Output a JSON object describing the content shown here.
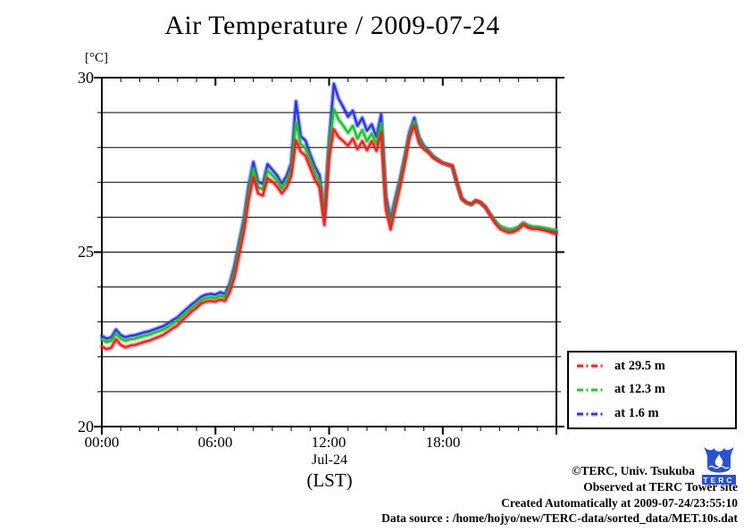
{
  "title": "Air Temperature / 2009-07-24",
  "y_axis": {
    "unit_label": "[°C]",
    "tick_labels": [
      "30",
      "25",
      "20"
    ]
  },
  "x_axis": {
    "tick_labels": [
      "00:00",
      "06:00",
      "12:00",
      "18:00"
    ],
    "date_label": "Jul-24",
    "tz_label": "(LST)"
  },
  "footer": {
    "credit": "©TERC, Univ. Tsukuba",
    "observed": "Observed at TERC Tower site",
    "created": "Created Automatically at 2009-07-24/23:55:10",
    "datasource": "Data source : /home/hojyo/new/TERC-data/sorted_data/MET.10s.dat"
  },
  "logo": {
    "text": "TERC",
    "color": "#2a52cc"
  },
  "chart_data": {
    "type": "line",
    "title": "Air Temperature / 2009-07-24",
    "xlabel": "Jul-24 (LST)",
    "ylabel": "[°C]",
    "xlim": [
      0,
      24
    ],
    "ylim": [
      20,
      30
    ],
    "x_major_tick_hours": 6,
    "x_minor_tick_hours": 1,
    "y_grid_step": 1,
    "grid": "horizontal",
    "legend_position": "outside-lower-right",
    "x_hours": {
      "start": 0,
      "step": 0.25,
      "count": 97
    },
    "series": [
      {
        "name": "at 29.5 m",
        "color": "#ee2222",
        "values": [
          22.3,
          22.22,
          22.26,
          22.5,
          22.34,
          22.27,
          22.32,
          22.34,
          22.38,
          22.43,
          22.46,
          22.52,
          22.57,
          22.63,
          22.72,
          22.82,
          22.9,
          23.04,
          23.17,
          23.3,
          23.4,
          23.53,
          23.58,
          23.6,
          23.58,
          23.64,
          23.6,
          23.85,
          24.28,
          24.92,
          25.58,
          26.5,
          27.15,
          26.68,
          26.62,
          27.12,
          27.02,
          26.88,
          26.68,
          26.85,
          27.18,
          28.2,
          27.88,
          27.76,
          27.42,
          27.08,
          26.85,
          25.78,
          27.7,
          28.52,
          28.3,
          28.18,
          28.05,
          28.25,
          27.95,
          28.18,
          27.92,
          28.18,
          27.9,
          28.42,
          26.22,
          25.65,
          26.28,
          26.88,
          27.55,
          28.3,
          28.62,
          28.12,
          27.95,
          27.85,
          27.7,
          27.62,
          27.55,
          27.52,
          27.48,
          27.0,
          26.52,
          26.42,
          26.38,
          26.48,
          26.43,
          26.29,
          26.06,
          25.84,
          25.67,
          25.6,
          25.56,
          25.58,
          25.65,
          25.79,
          25.7,
          25.66,
          25.66,
          25.63,
          25.6,
          25.55,
          25.52
        ]
      },
      {
        "name": "at 12.3 m",
        "color": "#1fc232",
        "values": [
          22.5,
          22.42,
          22.46,
          22.67,
          22.52,
          22.46,
          22.5,
          22.52,
          22.56,
          22.6,
          22.63,
          22.68,
          22.73,
          22.78,
          22.86,
          22.95,
          23.03,
          23.16,
          23.28,
          23.4,
          23.5,
          23.62,
          23.68,
          23.7,
          23.68,
          23.75,
          23.7,
          23.98,
          24.45,
          25.12,
          25.78,
          26.72,
          27.38,
          26.86,
          26.8,
          27.33,
          27.2,
          27.05,
          26.82,
          27.02,
          27.38,
          28.7,
          28.1,
          27.98,
          27.62,
          27.28,
          27.02,
          25.92,
          27.95,
          29.1,
          28.8,
          28.62,
          28.42,
          28.62,
          28.25,
          28.5,
          28.18,
          28.4,
          28.1,
          28.68,
          26.42,
          25.8,
          26.42,
          27.0,
          27.66,
          28.38,
          28.74,
          28.22,
          28.0,
          27.88,
          27.73,
          27.64,
          27.55,
          27.5,
          27.46,
          26.96,
          26.54,
          26.41,
          26.36,
          26.47,
          26.42,
          26.3,
          26.1,
          25.9,
          25.74,
          25.68,
          25.64,
          25.66,
          25.72,
          25.84,
          25.77,
          25.73,
          25.72,
          25.7,
          25.68,
          25.65,
          25.64
        ]
      },
      {
        "name": "at 1.6 m",
        "color": "#2a35e0",
        "values": [
          22.6,
          22.52,
          22.56,
          22.78,
          22.62,
          22.56,
          22.6,
          22.62,
          22.66,
          22.7,
          22.73,
          22.78,
          22.83,
          22.88,
          22.96,
          23.05,
          23.13,
          23.26,
          23.38,
          23.5,
          23.6,
          23.72,
          23.78,
          23.8,
          23.78,
          23.85,
          23.8,
          24.1,
          24.6,
          25.3,
          25.95,
          26.9,
          27.58,
          27.02,
          26.96,
          27.52,
          27.36,
          27.2,
          26.96,
          27.18,
          27.55,
          29.32,
          28.32,
          28.2,
          27.8,
          27.45,
          27.2,
          26.05,
          28.2,
          29.82,
          29.4,
          29.15,
          28.88,
          29.05,
          28.62,
          28.85,
          28.48,
          28.66,
          28.3,
          28.95,
          26.6,
          25.95,
          26.55,
          27.1,
          27.75,
          28.45,
          28.85,
          28.3,
          28.05,
          27.9,
          27.75,
          27.65,
          27.55,
          27.5,
          27.45,
          26.95,
          26.55,
          26.42,
          26.36,
          26.46,
          26.4,
          26.28,
          26.08,
          25.88,
          25.74,
          25.68,
          25.64,
          25.65,
          25.7,
          25.82,
          25.74,
          25.7,
          25.7,
          25.67,
          25.64,
          25.6,
          25.58
        ]
      }
    ]
  }
}
